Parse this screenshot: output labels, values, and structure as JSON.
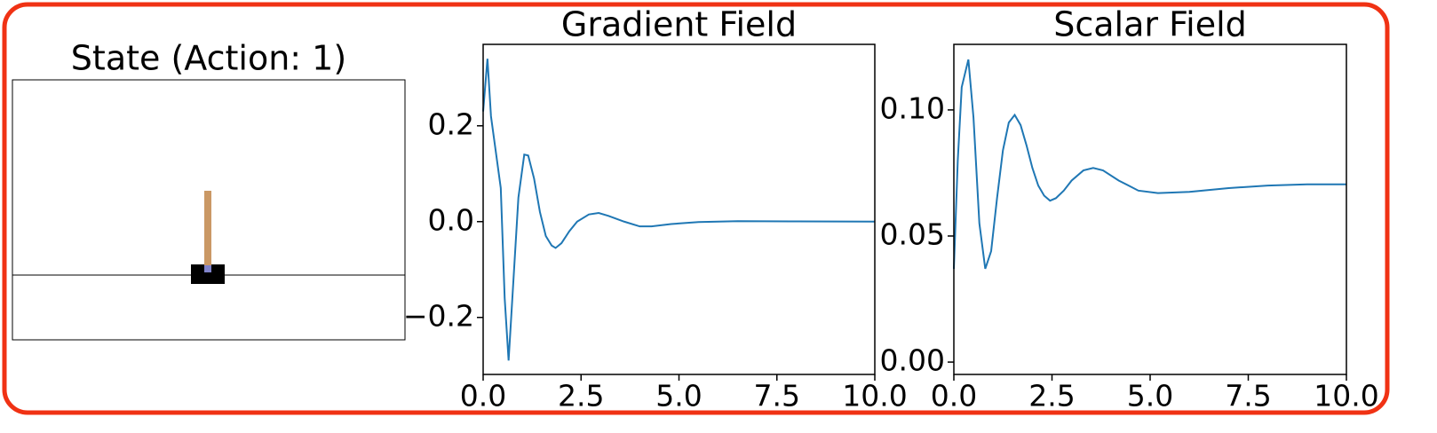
{
  "chart_data": [
    {
      "type": "image",
      "title": "State (Action: 1)"
    },
    {
      "type": "line",
      "title": "Gradient Field",
      "x": [
        0,
        0.11,
        0.2,
        0.45,
        0.55,
        0.65,
        0.9,
        1.05,
        1.15,
        1.3,
        1.45,
        1.6,
        1.75,
        1.85,
        2.0,
        2.2,
        2.4,
        2.7,
        2.95,
        3.2,
        3.6,
        4.0,
        4.3,
        4.8,
        5.5,
        6.5,
        8,
        10
      ],
      "series": [
        {
          "color": "#1f77b4",
          "values": [
            0.23,
            0.34,
            0.22,
            0.07,
            -0.16,
            -0.29,
            0.05,
            0.14,
            0.138,
            0.09,
            0.02,
            -0.03,
            -0.05,
            -0.055,
            -0.045,
            -0.02,
            0.0,
            0.015,
            0.018,
            0.012,
            0.0,
            -0.01,
            -0.01,
            -0.005,
            -0.001,
            0.001,
            0.0005,
            0
          ]
        }
      ],
      "xlim": [
        0,
        10
      ],
      "ylim": [
        -0.319,
        0.37
      ],
      "xticks": [
        {
          "value": 0,
          "label": "0.0"
        },
        {
          "value": 2.5,
          "label": "2.5"
        },
        {
          "value": 5,
          "label": "5.0"
        },
        {
          "value": 7.5,
          "label": "7.5"
        },
        {
          "value": 10,
          "label": "10.0"
        }
      ],
      "yticks": [
        {
          "value": -0.2,
          "label": "−0.2"
        },
        {
          "value": 0,
          "label": "0.0"
        },
        {
          "value": 0.2,
          "label": "0.2"
        }
      ]
    },
    {
      "type": "line",
      "title": "Scalar Field",
      "x": [
        0,
        0.1,
        0.2,
        0.37,
        0.5,
        0.65,
        0.8,
        0.95,
        1.1,
        1.25,
        1.4,
        1.55,
        1.7,
        1.85,
        2.0,
        2.15,
        2.3,
        2.45,
        2.6,
        2.8,
        3.0,
        3.3,
        3.55,
        3.8,
        4.2,
        4.7,
        5.2,
        6,
        7,
        8,
        9,
        10
      ],
      "series": [
        {
          "color": "#1f77b4",
          "values": [
            0.037,
            0.08,
            0.109,
            0.12,
            0.097,
            0.055,
            0.037,
            0.044,
            0.065,
            0.084,
            0.095,
            0.098,
            0.094,
            0.086,
            0.077,
            0.07,
            0.066,
            0.064,
            0.065,
            0.068,
            0.072,
            0.076,
            0.077,
            0.076,
            0.072,
            0.068,
            0.067,
            0.0675,
            0.069,
            0.07,
            0.0705,
            0.0705
          ]
        }
      ],
      "xlim": [
        0,
        10
      ],
      "ylim": [
        -0.0049,
        0.126
      ],
      "xticks": [
        {
          "value": 0,
          "label": "0.0"
        },
        {
          "value": 2.5,
          "label": "2.5"
        },
        {
          "value": 5,
          "label": "5.0"
        },
        {
          "value": 7.5,
          "label": "7.5"
        },
        {
          "value": 10,
          "label": "10.0"
        }
      ],
      "yticks": [
        {
          "value": 0,
          "label": "0.00"
        },
        {
          "value": 0.05,
          "label": "0.05"
        },
        {
          "value": 0.1,
          "label": "0.10"
        }
      ]
    }
  ]
}
